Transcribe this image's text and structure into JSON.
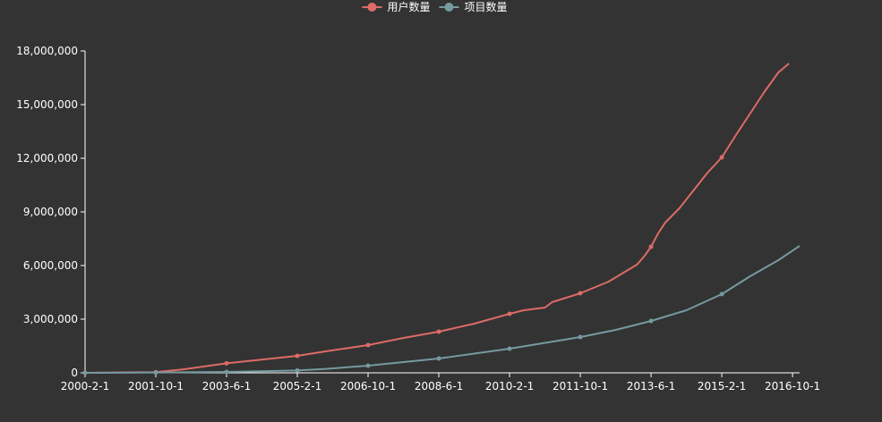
{
  "chart_data": {
    "type": "line",
    "title": "",
    "xlabel": "",
    "ylabel": "",
    "ylim": [
      0,
      18000000
    ],
    "yticks": [
      0,
      3000000,
      6000000,
      9000000,
      12000000,
      15000000,
      18000000
    ],
    "ytick_labels": [
      "0",
      "3,000,000",
      "6,000,000",
      "9,000,000",
      "12,000,000",
      "15,000,000",
      "18,000,000"
    ],
    "xlim": [
      "2000-2-1",
      "2016-12-1"
    ],
    "xticks": [
      "2000-2-1",
      "2001-10-1",
      "2003-6-1",
      "2005-2-1",
      "2006-10-1",
      "2008-6-1",
      "2010-2-1",
      "2011-10-1",
      "2013-6-1",
      "2015-2-1",
      "2016-10-1"
    ],
    "grid": false,
    "legend_position": "top",
    "colors": {
      "background": "#333333",
      "axis": "#ffffff",
      "text": "#ffffff"
    },
    "series": [
      {
        "name": "用户数量",
        "color": "#dd6b66",
        "points": [
          [
            "2000-2-1",
            0
          ],
          [
            "2001-10-1",
            40000
          ],
          [
            "2002-6-1",
            200000
          ],
          [
            "2003-6-1",
            530000
          ],
          [
            "2004-6-1",
            780000
          ],
          [
            "2005-2-1",
            950000
          ],
          [
            "2005-10-1",
            1200000
          ],
          [
            "2006-10-1",
            1550000
          ],
          [
            "2007-8-1",
            1950000
          ],
          [
            "2008-6-1",
            2300000
          ],
          [
            "2009-4-1",
            2750000
          ],
          [
            "2010-2-1",
            3300000
          ],
          [
            "2010-6-1",
            3500000
          ],
          [
            "2010-12-1",
            3650000
          ],
          [
            "2011-2-1",
            3950000
          ],
          [
            "2011-10-1",
            4450000
          ],
          [
            "2012-6-1",
            5100000
          ],
          [
            "2013-2-1",
            6050000
          ],
          [
            "2013-4-1",
            6500000
          ],
          [
            "2013-6-1",
            7050000
          ],
          [
            "2013-8-1",
            7800000
          ],
          [
            "2013-10-1",
            8400000
          ],
          [
            "2014-2-1",
            9200000
          ],
          [
            "2014-6-1",
            10200000
          ],
          [
            "2014-10-1",
            11200000
          ],
          [
            "2015-2-1",
            12050000
          ],
          [
            "2015-6-1",
            13300000
          ],
          [
            "2015-10-1",
            14500000
          ],
          [
            "2016-2-1",
            15700000
          ],
          [
            "2016-6-1",
            16800000
          ],
          [
            "2016-9-1",
            17300000
          ]
        ]
      },
      {
        "name": "项目数量",
        "color": "#759aa0",
        "points": [
          [
            "2000-2-1",
            0
          ],
          [
            "2001-10-1",
            20000
          ],
          [
            "2003-6-1",
            50000
          ],
          [
            "2005-2-1",
            130000
          ],
          [
            "2005-10-1",
            220000
          ],
          [
            "2006-10-1",
            400000
          ],
          [
            "2008-6-1",
            800000
          ],
          [
            "2010-2-1",
            1350000
          ],
          [
            "2011-10-1",
            2000000
          ],
          [
            "2012-8-1",
            2400000
          ],
          [
            "2013-6-1",
            2900000
          ],
          [
            "2014-4-1",
            3500000
          ],
          [
            "2015-2-1",
            4400000
          ],
          [
            "2015-10-1",
            5400000
          ],
          [
            "2016-6-1",
            6300000
          ],
          [
            "2016-12-1",
            7100000
          ]
        ]
      }
    ]
  }
}
